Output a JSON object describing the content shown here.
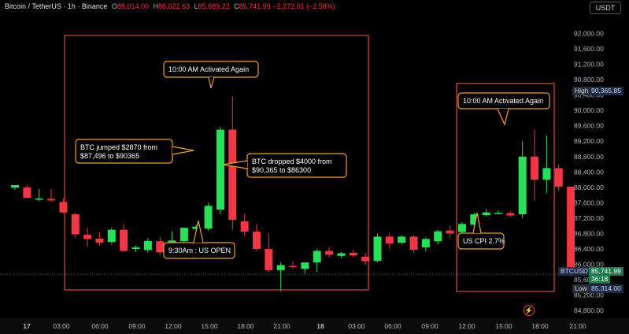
{
  "header": {
    "symbol": "Bitcoin / TetherUS · 1h · Binance",
    "open_label": "O",
    "open_value": "88,014.00",
    "high_label": "H",
    "high_value": "88,022.63",
    "low_label": "L",
    "low_value": "85,689.22",
    "close_label": "C",
    "close_value": "85,741.99",
    "change": "−2,272.01 (−2.58%)"
  },
  "currency_button": "USDT",
  "price_tags": {
    "high_label": "High",
    "high_value": "90,365.85",
    "symbol_tag": "BTCUSDT",
    "last_price": "85,741.99",
    "countdown": "36:18",
    "low_label": "Low",
    "low_value": "85,314.00"
  },
  "colors": {
    "up": "#26e05a",
    "down": "#f23645",
    "box": "#e0453a",
    "callout": "#f0a030",
    "dark_up": "#1f7a4c"
  },
  "chart_data": {
    "type": "candlestick",
    "ylim": [
      84600,
      92500
    ],
    "y_ticks": [
      "92,000.00",
      "91,600.00",
      "91,200.00",
      "90,800.00",
      "90,400.00",
      "90,000.00",
      "89,600.00",
      "89,200.00",
      "88,800.00",
      "88,400.00",
      "88,000.00",
      "87,600.00",
      "87,200.00",
      "86,800.00",
      "86,400.00",
      "86,000.00",
      "85,600.00",
      "85,200.00",
      "84,800.00"
    ],
    "x_ticks": [
      "17",
      "03:00",
      "06:00",
      "09:00",
      "12:00",
      "15:00",
      "18:00",
      "21:00",
      "18",
      "03:00",
      "06:00",
      "09:00",
      "12:00",
      "15:00",
      "18:00",
      "21:00"
    ],
    "candles": [
      {
        "o": 87990,
        "h": 88060,
        "l": 87930,
        "c": 88060
      },
      {
        "o": 88000,
        "h": 88060,
        "l": 87730,
        "c": 87730
      },
      {
        "o": 87710,
        "h": 87960,
        "l": 87640,
        "c": 87710
      },
      {
        "o": 87700,
        "h": 87960,
        "l": 87620,
        "c": 87660
      },
      {
        "o": 87620,
        "h": 87710,
        "l": 87330,
        "c": 87350
      },
      {
        "o": 87300,
        "h": 87340,
        "l": 86680,
        "c": 86780
      },
      {
        "o": 86770,
        "h": 86950,
        "l": 86460,
        "c": 86660
      },
      {
        "o": 86670,
        "h": 86840,
        "l": 86480,
        "c": 86560
      },
      {
        "o": 86580,
        "h": 86950,
        "l": 86520,
        "c": 86900
      },
      {
        "o": 86900,
        "h": 87040,
        "l": 86320,
        "c": 86350
      },
      {
        "o": 86400,
        "h": 86490,
        "l": 86330,
        "c": 86440
      },
      {
        "o": 86370,
        "h": 86680,
        "l": 86300,
        "c": 86610
      },
      {
        "o": 86600,
        "h": 86720,
        "l": 86240,
        "c": 86310
      },
      {
        "o": 86380,
        "h": 86860,
        "l": 86320,
        "c": 86620
      },
      {
        "o": 86600,
        "h": 86960,
        "l": 86530,
        "c": 86950
      },
      {
        "o": 86920,
        "h": 87030,
        "l": 86760,
        "c": 86980
      },
      {
        "o": 86930,
        "h": 87600,
        "l": 86880,
        "c": 87520
      },
      {
        "o": 87420,
        "h": 89570,
        "l": 87300,
        "c": 89500
      },
      {
        "o": 89500,
        "h": 90365,
        "l": 86900,
        "c": 87160
      },
      {
        "o": 87120,
        "h": 87320,
        "l": 86750,
        "c": 86850
      },
      {
        "o": 86850,
        "h": 87050,
        "l": 86350,
        "c": 86400
      },
      {
        "o": 86400,
        "h": 86800,
        "l": 85800,
        "c": 85850
      },
      {
        "o": 85850,
        "h": 86050,
        "l": 85300,
        "c": 85980
      },
      {
        "o": 85960,
        "h": 86080,
        "l": 85880,
        "c": 85930
      },
      {
        "o": 85880,
        "h": 86020,
        "l": 85750,
        "c": 86050
      },
      {
        "o": 86050,
        "h": 86400,
        "l": 85800,
        "c": 86350
      },
      {
        "o": 86350,
        "h": 86450,
        "l": 86180,
        "c": 86250
      },
      {
        "o": 86220,
        "h": 86330,
        "l": 86170,
        "c": 86290
      },
      {
        "o": 86300,
        "h": 86380,
        "l": 86200,
        "c": 86230
      },
      {
        "o": 86200,
        "h": 86300,
        "l": 85980,
        "c": 86080
      },
      {
        "o": 86090,
        "h": 86800,
        "l": 86050,
        "c": 86720
      },
      {
        "o": 86720,
        "h": 86820,
        "l": 86400,
        "c": 86540
      },
      {
        "o": 86560,
        "h": 86760,
        "l": 86520,
        "c": 86720
      },
      {
        "o": 86720,
        "h": 86750,
        "l": 86300,
        "c": 86380
      },
      {
        "o": 86440,
        "h": 86700,
        "l": 86340,
        "c": 86660
      },
      {
        "o": 86600,
        "h": 86900,
        "l": 86520,
        "c": 86860
      },
      {
        "o": 86880,
        "h": 87000,
        "l": 86700,
        "c": 86800
      },
      {
        "o": 86840,
        "h": 87100,
        "l": 86800,
        "c": 87050
      },
      {
        "o": 87030,
        "h": 87350,
        "l": 86980,
        "c": 87300
      },
      {
        "o": 87280,
        "h": 87440,
        "l": 87250,
        "c": 87350
      },
      {
        "o": 87330,
        "h": 87400,
        "l": 87300,
        "c": 87340
      },
      {
        "o": 87330,
        "h": 87380,
        "l": 87230,
        "c": 87270
      },
      {
        "o": 87300,
        "h": 89200,
        "l": 87200,
        "c": 88800
      },
      {
        "o": 88800,
        "h": 89500,
        "l": 87650,
        "c": 88200
      },
      {
        "o": 88200,
        "h": 89350,
        "l": 87850,
        "c": 88500
      },
      {
        "o": 88500,
        "h": 88600,
        "l": 87900,
        "c": 88020
      },
      {
        "o": 88020,
        "h": 88020,
        "l": 85690,
        "c": 85742
      }
    ],
    "annotations": [
      {
        "text": "10:00 AM Activated Again"
      },
      {
        "text": "BTC jumped $2870 from\n$87,496 to $90365"
      },
      {
        "text": "BTC dropped $4000 from\n$90,365 to $86300"
      },
      {
        "text": "9:30Am : US OPEN"
      },
      {
        "text": "10:00 AM Activated Again"
      },
      {
        "text": "US CPI 2.7%"
      }
    ]
  }
}
